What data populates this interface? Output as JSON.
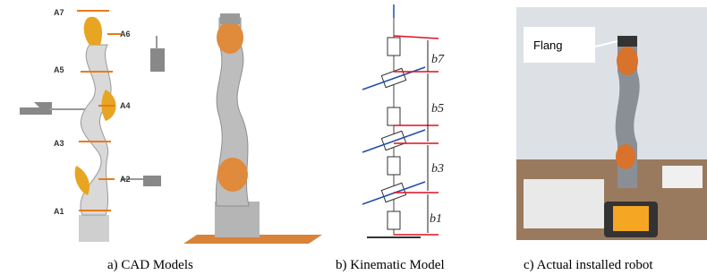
{
  "cad": {
    "joints": [
      "A7",
      "A6",
      "A5",
      "A4",
      "A3",
      "A2",
      "A1"
    ],
    "caption": "a)  CAD Models"
  },
  "kinematic": {
    "links": [
      "b7",
      "b5",
      "b3",
      "b1"
    ],
    "caption": "b)  Kinematic Model"
  },
  "photo": {
    "label": "Flang",
    "caption": "c)  Actual installed robot"
  }
}
